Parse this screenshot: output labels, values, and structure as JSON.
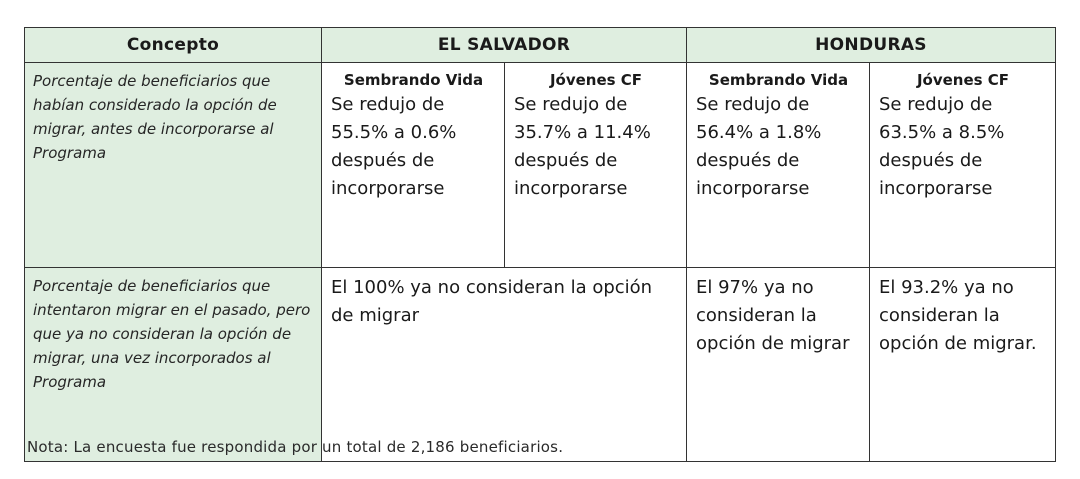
{
  "header": {
    "concepto": "Concepto",
    "el_salvador": "EL SALVADOR",
    "honduras": "HONDURAS"
  },
  "rows": [
    {
      "concept": "Porcentaje de beneficiarios que habían considerado la opción de migrar, antes de incorporarse al Programa",
      "sv_sembrando_program": "Sembrando Vida",
      "sv_sembrando_value": "Se redujo de 55.5% a 0.6% después de incorporarse",
      "sv_jovenes_program": "Jóvenes CF",
      "sv_jovenes_value": "Se redujo de 35.7% a 11.4% después de incorporarse",
      "hn_sembrando_program": "Sembrando Vida",
      "hn_sembrando_value": "Se redujo de 56.4% a 1.8% después de incorporarse",
      "hn_jovenes_program": "Jóvenes CF",
      "hn_jovenes_value": "Se redujo de 63.5% a 8.5% después de incorporarse"
    },
    {
      "concept": "Porcentaje de beneficiarios que intentaron migrar en el pasado, pero que ya no consideran la opción de migrar, una vez incorporados al Programa",
      "sv_value": "El 100% ya no consideran la opción de migrar",
      "hn_sembrando_value": "El 97% ya no consideran la opción de migrar",
      "hn_jovenes_value": "El 93.2% ya no consideran la opción de migrar."
    }
  ],
  "note": "Nota: La encuesta fue respondida por un total de 2,186 beneficiarios."
}
